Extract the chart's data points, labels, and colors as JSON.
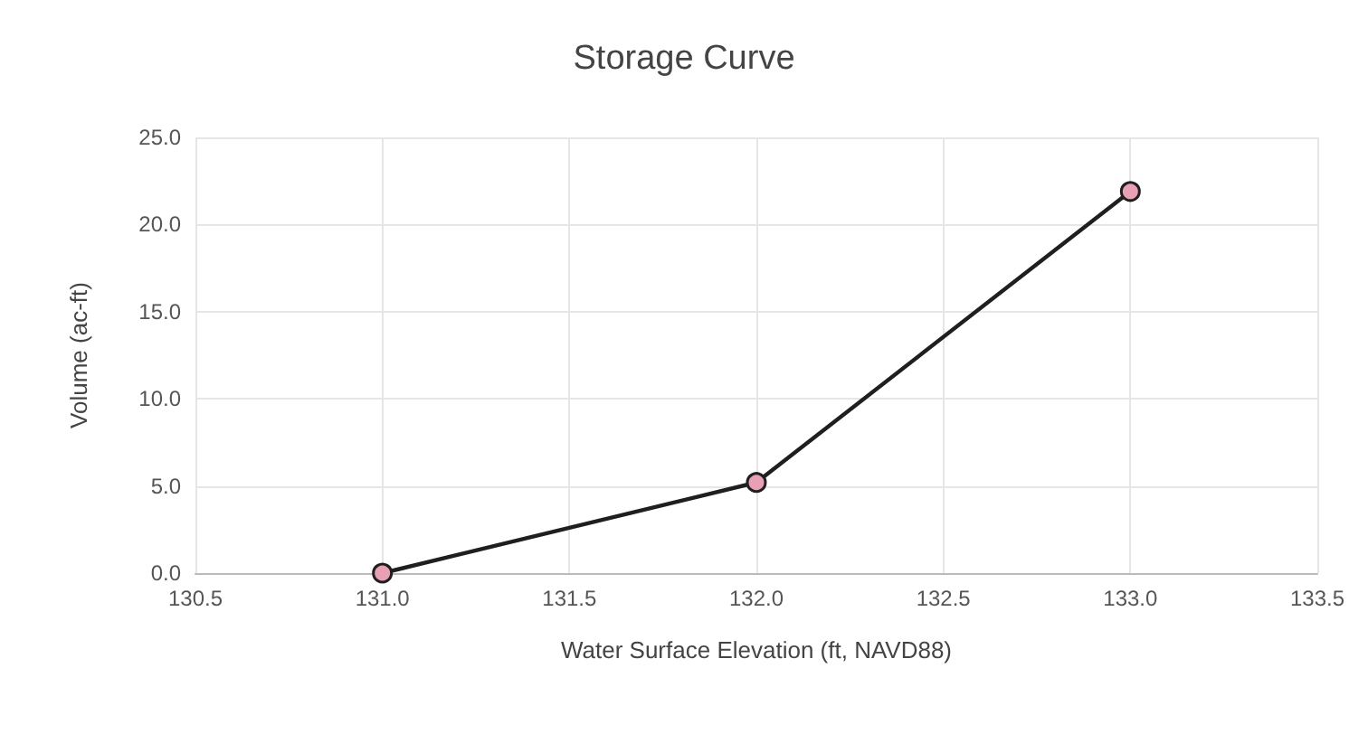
{
  "chart_data": {
    "type": "line",
    "title": "Storage Curve",
    "xlabel": "Water Surface Elevation (ft, NAVD88)",
    "ylabel": "Volume (ac-ft)",
    "x": [
      131.0,
      132.0,
      133.0
    ],
    "series": [
      {
        "color": "#1f1f1f",
        "values": [
          0,
          5.2,
          21.9
        ]
      }
    ],
    "xlim": [
      130.5,
      133.5
    ],
    "xticks": [
      {
        "value": 130.5,
        "label": "130.5"
      },
      {
        "value": 131,
        "label": "131.0"
      },
      {
        "value": 131.5,
        "label": "131.5"
      },
      {
        "value": 132,
        "label": "132.0"
      },
      {
        "value": 132.5,
        "label": "132.5"
      },
      {
        "value": 133,
        "label": "133.0"
      },
      {
        "value": 133.5,
        "label": "133.5"
      }
    ],
    "ylim": [
      0,
      25
    ],
    "yticks": [
      {
        "value": 0,
        "label": "0.0"
      },
      {
        "value": 5,
        "label": "5.0"
      },
      {
        "value": 10,
        "label": "10.0"
      },
      {
        "value": 15,
        "label": "15.0"
      },
      {
        "value": 20,
        "label": "20.0"
      },
      {
        "value": 25,
        "label": "25.0"
      }
    ],
    "grid": true,
    "marker": "circle",
    "line_style": "solid"
  }
}
